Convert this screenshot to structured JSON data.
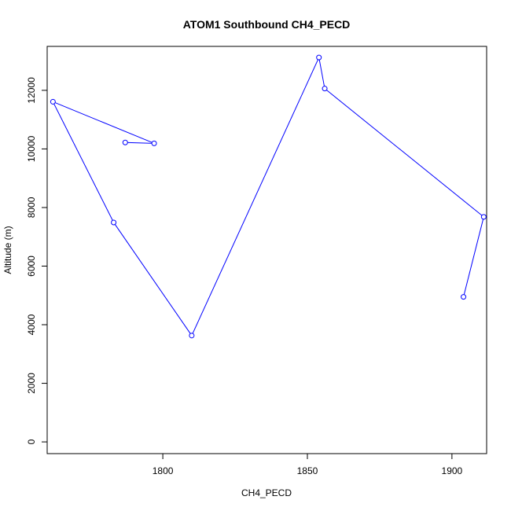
{
  "chart_data": {
    "type": "line",
    "title": "ATOM1 Southbound CH4_PECD",
    "xlabel": "CH4_PECD",
    "ylabel": "Altitude (m)",
    "xlim": [
      1760,
      1912
    ],
    "ylim": [
      -400,
      13500
    ],
    "x_ticks": [
      1800,
      1850,
      1900
    ],
    "y_ticks": [
      0,
      2000,
      4000,
      6000,
      8000,
      10000,
      12000
    ],
    "series": [
      {
        "color": "#0000ff",
        "marker": "open-circle",
        "points": [
          {
            "x": 1787,
            "y": 10220
          },
          {
            "x": 1797,
            "y": 10190
          },
          {
            "x": 1762,
            "y": 11610
          },
          {
            "x": 1783,
            "y": 7490
          },
          {
            "x": 1810,
            "y": 3630
          },
          {
            "x": 1854,
            "y": 13120
          },
          {
            "x": 1856,
            "y": 12060
          },
          {
            "x": 1911,
            "y": 7680
          },
          {
            "x": 1904,
            "y": 4950
          }
        ]
      }
    ],
    "grid": false,
    "legend": "none"
  }
}
